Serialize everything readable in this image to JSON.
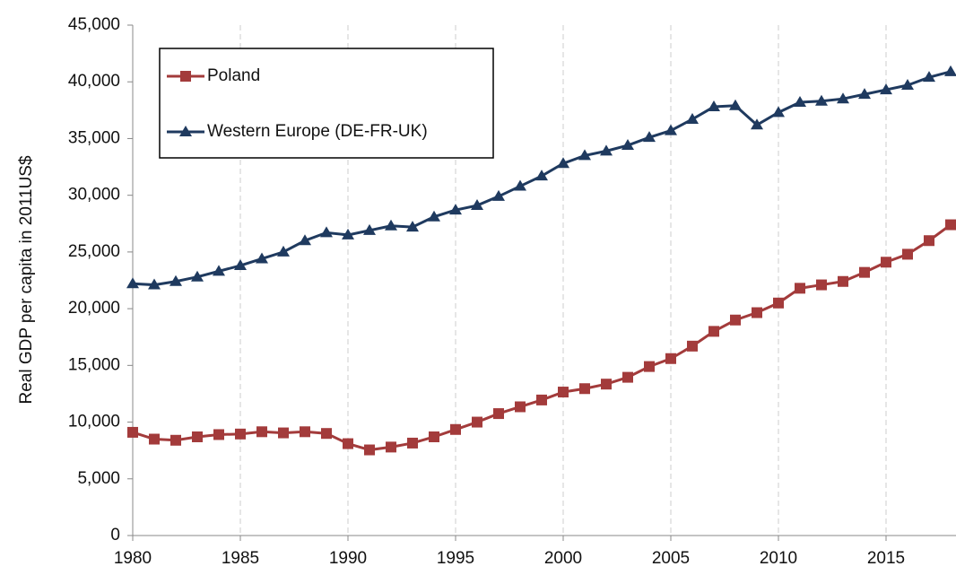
{
  "chart_data": {
    "type": "line",
    "y_label": "Real GDP per capita in 2011US$",
    "x": [
      1980,
      1981,
      1982,
      1983,
      1984,
      1985,
      1986,
      1987,
      1988,
      1989,
      1990,
      1991,
      1992,
      1993,
      1994,
      1995,
      1996,
      1997,
      1998,
      1999,
      2000,
      2001,
      2002,
      2003,
      2004,
      2005,
      2006,
      2007,
      2008,
      2009,
      2010,
      2011,
      2012,
      2013,
      2014,
      2015,
      2016,
      2017,
      2018
    ],
    "series": [
      {
        "name": "Poland",
        "color": "#a33b3b",
        "marker": "square",
        "values": [
          9100,
          8500,
          8400,
          8700,
          8900,
          8950,
          9150,
          9050,
          9150,
          9000,
          8100,
          7550,
          7800,
          8150,
          8700,
          9350,
          10000,
          10750,
          11350,
          11950,
          12650,
          12950,
          13350,
          13950,
          14900,
          15600,
          16700,
          18000,
          19000,
          19650,
          20500,
          21800,
          22100,
          22400,
          23200,
          24100,
          24800,
          26000,
          27400
        ]
      },
      {
        "name": "Western Europe (DE-FR-UK)",
        "color": "#1f3a5f",
        "marker": "triangle",
        "values": [
          22200,
          22100,
          22400,
          22800,
          23300,
          23800,
          24400,
          25000,
          26000,
          26700,
          26500,
          26900,
          27300,
          27200,
          28100,
          28700,
          29100,
          29900,
          30800,
          31700,
          32800,
          33500,
          33900,
          34400,
          35100,
          35700,
          36700,
          37800,
          37900,
          36200,
          37300,
          38200,
          38300,
          38500,
          38900,
          39300,
          39700,
          40400,
          40900
        ]
      }
    ],
    "xlim": [
      1980,
      2018.25
    ],
    "xticks": [
      1980,
      1985,
      1990,
      1995,
      2000,
      2005,
      2010,
      2015
    ],
    "ylim": [
      0,
      45000
    ],
    "yticks": [
      0,
      {
        "value": 5000,
        "label": "5,000"
      },
      {
        "value": 10000,
        "label": "10,000"
      },
      {
        "value": 15000,
        "label": "15,000"
      },
      {
        "value": 20000,
        "label": "20,000"
      },
      {
        "value": 25000,
        "label": "25,000"
      },
      {
        "value": 30000,
        "label": "30,000"
      },
      {
        "value": 35000,
        "label": "35,000"
      },
      {
        "value": 40000,
        "label": "40,000"
      },
      {
        "value": 45000,
        "label": "45,000"
      }
    ],
    "grid": "x",
    "legend": "upper left"
  }
}
